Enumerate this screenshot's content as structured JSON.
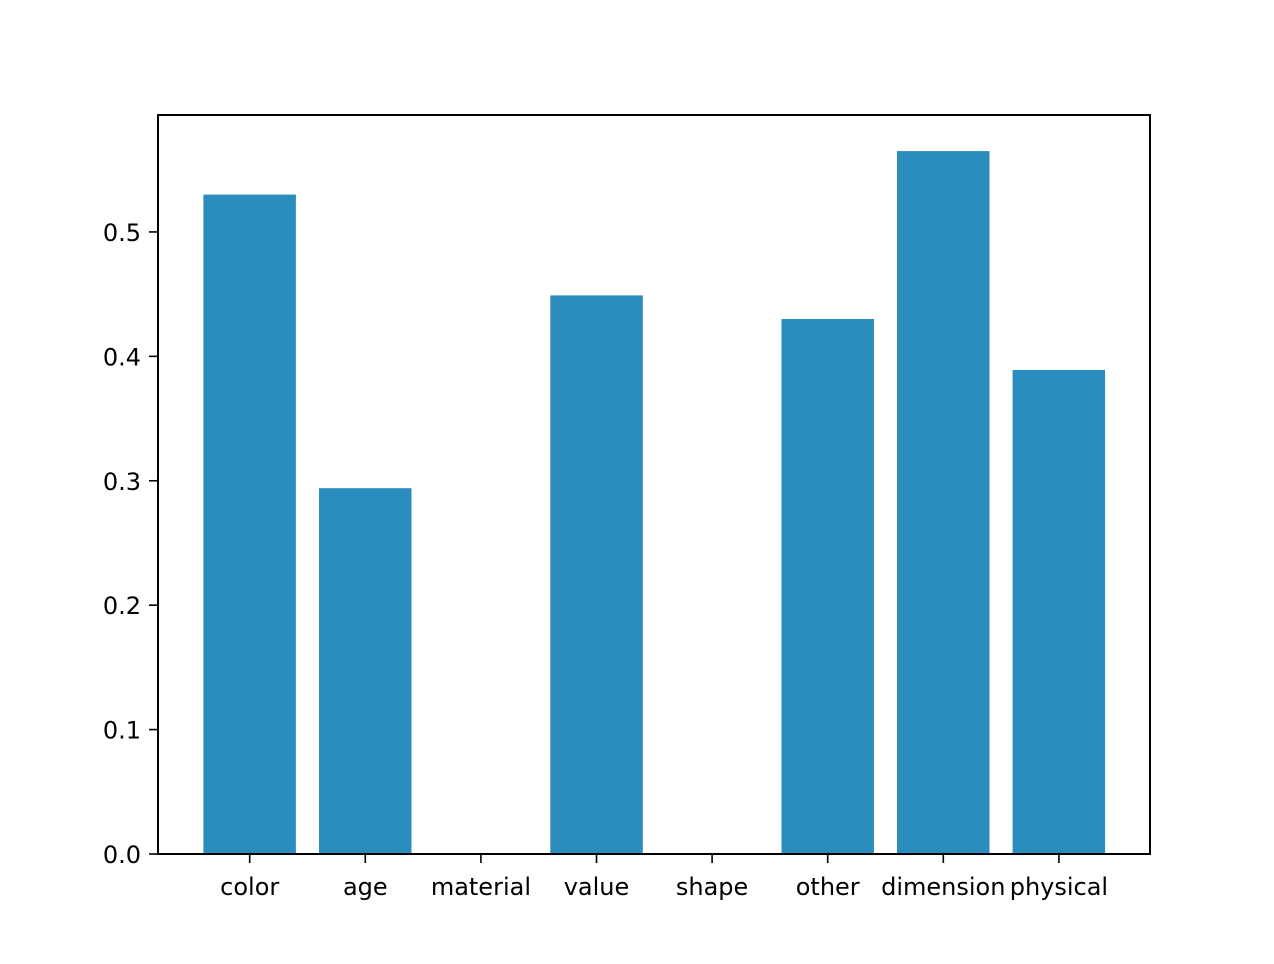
{
  "chart_data": {
    "type": "bar",
    "title": "",
    "xlabel": "",
    "ylabel": "",
    "categories": [
      "color",
      "age",
      "material",
      "value",
      "shape",
      "other",
      "dimension",
      "physical"
    ],
    "values": [
      0.53,
      0.294,
      0.0,
      0.449,
      0.0,
      0.43,
      0.565,
      0.389
    ],
    "ylim": [
      0,
      0.594
    ],
    "yticks": [
      0.0,
      0.1,
      0.2,
      0.3,
      0.4,
      0.5
    ],
    "ytick_labels": [
      "0.0",
      "0.1",
      "0.2",
      "0.3",
      "0.4",
      "0.5"
    ],
    "grid": false,
    "legend": "none",
    "bar_color": "#2b8cbe"
  }
}
